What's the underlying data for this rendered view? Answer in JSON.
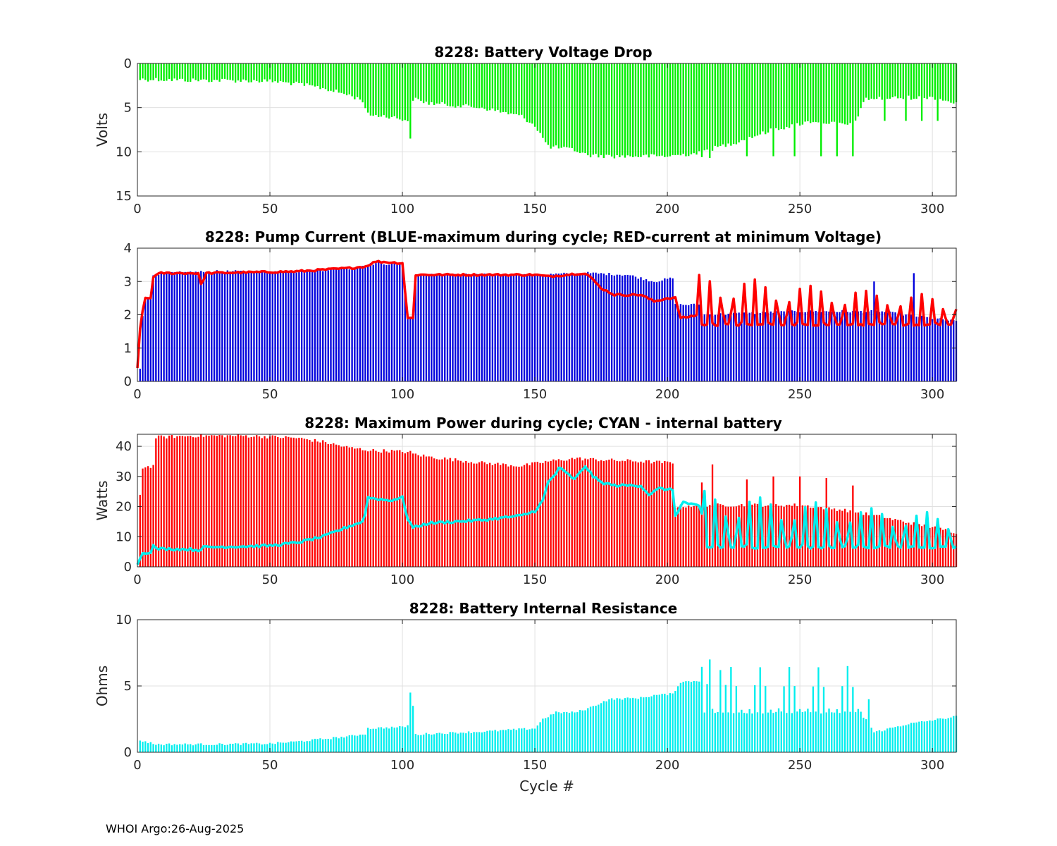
{
  "footer": "WHOI Argo:26-Aug-2025",
  "colors": {
    "voltage": "#00ee00",
    "pump_max": "#0000dd",
    "pump_min": "#ff0000",
    "power": "#ff0000",
    "internal": "#00eeee",
    "resistance": "#00eeee"
  },
  "chart_data": [
    {
      "id": "voltage",
      "type": "bar",
      "title": "8228: Battery Voltage Drop",
      "xlabel": "",
      "ylabel": "Volts",
      "xlim": [
        0,
        309
      ],
      "ylim": [
        0,
        15
      ],
      "y_reversed": true,
      "xticks": [
        0,
        50,
        100,
        150,
        200,
        250,
        300
      ],
      "yticks": [
        0,
        5,
        10,
        15
      ],
      "grid": true,
      "series": [
        {
          "name": "voltage drop",
          "style": "bar",
          "x_start": 1,
          "keypoints": [
            [
              1,
              1.8
            ],
            [
              5,
              1.8
            ],
            [
              20,
              1.9
            ],
            [
              30,
              1.9
            ],
            [
              50,
              2.0
            ],
            [
              60,
              2.3
            ],
            [
              70,
              2.8
            ],
            [
              80,
              3.6
            ],
            [
              85,
              4.2
            ],
            [
              87,
              5.8
            ],
            [
              95,
              6.0
            ],
            [
              103,
              6.5
            ],
            [
              104,
              4.0
            ],
            [
              110,
              4.5
            ],
            [
              130,
              5.0
            ],
            [
              145,
              6.0
            ],
            [
              150,
              7.0
            ],
            [
              155,
              9.4
            ],
            [
              165,
              9.8
            ],
            [
              170,
              10.4
            ],
            [
              180,
              10.5
            ],
            [
              200,
              10.5
            ],
            [
              210,
              10.2
            ],
            [
              225,
              9.0
            ],
            [
              240,
              7.5
            ],
            [
              255,
              6.5
            ],
            [
              270,
              7.0
            ],
            [
              275,
              4.0
            ],
            [
              300,
              3.8
            ],
            [
              309,
              4.5
            ]
          ],
          "spikes": [
            {
              "x": 103,
              "value": 8.5
            },
            {
              "x": 213,
              "value": 10.6
            },
            {
              "x": 216,
              "value": 10.7
            },
            {
              "x": 230,
              "value": 10.5
            },
            {
              "x": 240,
              "value": 10.5
            },
            {
              "x": 248,
              "value": 10.5
            },
            {
              "x": 258,
              "value": 10.5
            },
            {
              "x": 264,
              "value": 10.5
            },
            {
              "x": 270,
              "value": 10.5
            },
            {
              "x": 282,
              "value": 6.5
            },
            {
              "x": 290,
              "value": 6.5
            },
            {
              "x": 296,
              "value": 6.5
            },
            {
              "x": 302,
              "value": 6.5
            }
          ],
          "noise": 0.25
        }
      ]
    },
    {
      "id": "pump",
      "type": "bar",
      "title": "8228: Pump Current (BLUE-maximum during cycle; RED-current at minimum Voltage)",
      "xlabel": "",
      "ylabel": "",
      "xlim": [
        0,
        309
      ],
      "ylim": [
        0,
        4
      ],
      "y_reversed": false,
      "xticks": [
        0,
        50,
        100,
        150,
        200,
        250,
        300
      ],
      "yticks": [
        0,
        1,
        2,
        3,
        4
      ],
      "grid": true,
      "series": [
        {
          "name": "BLUE-maximum during cycle",
          "style": "bar",
          "x_start": 1,
          "keypoints": [
            [
              1,
              0.4
            ],
            [
              2,
              2.0
            ],
            [
              3,
              2.5
            ],
            [
              5,
              2.5
            ],
            [
              6,
              3.2
            ],
            [
              10,
              3.25
            ],
            [
              30,
              3.3
            ],
            [
              60,
              3.3
            ],
            [
              80,
              3.4
            ],
            [
              90,
              3.55
            ],
            [
              100,
              3.5
            ],
            [
              102,
              1.9
            ],
            [
              104,
              1.9
            ],
            [
              105,
              3.2
            ],
            [
              150,
              3.2
            ],
            [
              170,
              3.25
            ],
            [
              185,
              3.2
            ],
            [
              195,
              3.0
            ],
            [
              202,
              3.1
            ],
            [
              203,
              2.3
            ],
            [
              212,
              2.3
            ],
            [
              213,
              2.0
            ],
            [
              250,
              2.1
            ],
            [
              280,
              2.1
            ],
            [
              309,
              1.8
            ]
          ],
          "spikes": [
            {
              "x": 278,
              "value": 3.0
            },
            {
              "x": 293,
              "value": 3.25
            }
          ],
          "noise": 0.04
        },
        {
          "name": "RED-current at minimum Voltage",
          "style": "line",
          "x_start": 0,
          "keypoints": [
            [
              0,
              0.4
            ],
            [
              1,
              1.6
            ],
            [
              2,
              2.1
            ],
            [
              3,
              2.5
            ],
            [
              5,
              2.5
            ],
            [
              6,
              3.15
            ],
            [
              9,
              3.25
            ],
            [
              23,
              3.25
            ],
            [
              24,
              2.9
            ],
            [
              26,
              3.25
            ],
            [
              60,
              3.3
            ],
            [
              80,
              3.4
            ],
            [
              86,
              3.45
            ],
            [
              90,
              3.6
            ],
            [
              100,
              3.55
            ],
            [
              102,
              1.9
            ],
            [
              104,
              1.9
            ],
            [
              105,
              3.2
            ],
            [
              150,
              3.2
            ],
            [
              155,
              3.15
            ],
            [
              168,
              3.25
            ],
            [
              170,
              3.2
            ],
            [
              175,
              2.8
            ],
            [
              180,
              2.6
            ],
            [
              190,
              2.6
            ],
            [
              195,
              2.4
            ],
            [
              200,
              2.5
            ],
            [
              203,
              2.5
            ],
            [
              205,
              1.9
            ],
            [
              212,
              2.0
            ],
            [
              309,
              1.7
            ]
          ],
          "oscillation": {
            "start": 212,
            "end": 309,
            "period": 4.2,
            "amp_start": 0.75,
            "amp_end": 0.45,
            "peak_top_start": 3.2,
            "peak_top_end": 2.5,
            "trough": 1.7
          },
          "noise": 0.03
        }
      ]
    },
    {
      "id": "power",
      "type": "bar",
      "title": "8228: Maximum Power during cycle; CYAN - internal battery",
      "xlabel": "",
      "ylabel": "Watts",
      "xlim": [
        0,
        309
      ],
      "ylim": [
        0,
        44
      ],
      "y_reversed": false,
      "xticks": [
        0,
        50,
        100,
        150,
        200,
        250,
        300
      ],
      "yticks": [
        0,
        10,
        20,
        30,
        40
      ],
      "grid": true,
      "series": [
        {
          "name": "Maximum Power",
          "style": "bar",
          "x_start": 1,
          "keypoints": [
            [
              1,
              24
            ],
            [
              2,
              33
            ],
            [
              6,
              33.5
            ],
            [
              7,
              43
            ],
            [
              20,
              43.5
            ],
            [
              40,
              43.5
            ],
            [
              50,
              43.2
            ],
            [
              60,
              42.8
            ],
            [
              70,
              41.5
            ],
            [
              80,
              39.5
            ],
            [
              90,
              38.5
            ],
            [
              95,
              38.5
            ],
            [
              103,
              38
            ],
            [
              104,
              37.5
            ],
            [
              110,
              36.5
            ],
            [
              130,
              34.5
            ],
            [
              145,
              33.5
            ],
            [
              155,
              35
            ],
            [
              165,
              36
            ],
            [
              175,
              35.5
            ],
            [
              190,
              35
            ],
            [
              202,
              34.5
            ],
            [
              203,
              20
            ],
            [
              212,
              20.5
            ],
            [
              250,
              20.5
            ],
            [
              270,
              18.5
            ],
            [
              278,
              17
            ],
            [
              309,
              11.5
            ]
          ],
          "spikes": [
            {
              "x": 213,
              "value": 28
            },
            {
              "x": 217,
              "value": 34
            },
            {
              "x": 230,
              "value": 29
            },
            {
              "x": 240,
              "value": 30
            },
            {
              "x": 250,
              "value": 30
            },
            {
              "x": 260,
              "value": 29.5
            },
            {
              "x": 270,
              "value": 27
            }
          ],
          "noise": 0.6
        },
        {
          "name": "CYAN - internal battery",
          "style": "line",
          "x_start": 0,
          "keypoints": [
            [
              0,
              0.5
            ],
            [
              1,
              3
            ],
            [
              2,
              4.5
            ],
            [
              5,
              5
            ],
            [
              6,
              7
            ],
            [
              7,
              6
            ],
            [
              20,
              5.8
            ],
            [
              23,
              5.5
            ],
            [
              25,
              6.5
            ],
            [
              50,
              7
            ],
            [
              60,
              8
            ],
            [
              70,
              10
            ],
            [
              80,
              13.5
            ],
            [
              85,
              15
            ],
            [
              86,
              18
            ],
            [
              87,
              23
            ],
            [
              95,
              22
            ],
            [
              100,
              23
            ],
            [
              102,
              16
            ],
            [
              104,
              13
            ],
            [
              110,
              14.5
            ],
            [
              130,
              15.5
            ],
            [
              145,
              17
            ],
            [
              150,
              18.5
            ],
            [
              153,
              22
            ],
            [
              155,
              28
            ],
            [
              158,
              31
            ],
            [
              159,
              33
            ],
            [
              165,
              29
            ],
            [
              169,
              33.5
            ],
            [
              172,
              30
            ],
            [
              175,
              28
            ],
            [
              180,
              27
            ],
            [
              190,
              27
            ],
            [
              193,
              24
            ],
            [
              197,
              26
            ],
            [
              202,
              25.5
            ],
            [
              203,
              17
            ],
            [
              206,
              21.5
            ],
            [
              212,
              20
            ],
            [
              214,
              15
            ],
            [
              218,
              23
            ],
            [
              270,
              20
            ],
            [
              275,
              18
            ],
            [
              309,
              8
            ]
          ],
          "oscillation": {
            "start": 214,
            "end": 309,
            "period": 4.2,
            "amp_start": 4.5,
            "amp_end": 6.5,
            "peak_top_start": 25,
            "peak_top_end": 17,
            "trough": 6.5
          },
          "noise": 0.4
        }
      ]
    },
    {
      "id": "resistance",
      "type": "bar",
      "title": "8228: Battery Internal Resistance",
      "xlabel": "Cycle #",
      "ylabel": "Ohms",
      "xlim": [
        0,
        309
      ],
      "ylim": [
        0,
        10
      ],
      "y_reversed": false,
      "xticks": [
        0,
        50,
        100,
        150,
        200,
        250,
        300
      ],
      "yticks": [
        0,
        5,
        10
      ],
      "grid": true,
      "series": [
        {
          "name": "internal resistance",
          "style": "bar",
          "x_start": 1,
          "keypoints": [
            [
              1,
              0.9
            ],
            [
              5,
              0.7
            ],
            [
              7,
              0.6
            ],
            [
              30,
              0.6
            ],
            [
              50,
              0.65
            ],
            [
              60,
              0.8
            ],
            [
              70,
              1.0
            ],
            [
              80,
              1.2
            ],
            [
              86,
              1.4
            ],
            [
              87,
              1.8
            ],
            [
              100,
              1.9
            ],
            [
              102,
              2.0
            ],
            [
              103,
              1.3
            ],
            [
              110,
              1.4
            ],
            [
              130,
              1.55
            ],
            [
              150,
              1.8
            ],
            [
              153,
              2.5
            ],
            [
              158,
              3.0
            ],
            [
              165,
              3.0
            ],
            [
              170,
              3.3
            ],
            [
              178,
              4.0
            ],
            [
              190,
              4.1
            ],
            [
              195,
              4.3
            ],
            [
              202,
              4.4
            ],
            [
              205,
              5.3
            ],
            [
              212,
              5.4
            ],
            [
              213,
              3.0
            ],
            [
              270,
              3.2
            ],
            [
              275,
              2.5
            ],
            [
              278,
              1.5
            ],
            [
              290,
              2.1
            ],
            [
              309,
              2.7
            ]
          ],
          "oscillation": {
            "start": 213,
            "end": 273,
            "period": 2.2,
            "amp_start": 1.5,
            "amp_end": 1.5,
            "peak_top_start": 6.5,
            "peak_top_end": 6.3,
            "trough": 3.0,
            "kind": "bars"
          },
          "spikes": [
            {
              "x": 103,
              "value": 4.5
            },
            {
              "x": 104,
              "value": 3.5
            },
            {
              "x": 216,
              "value": 7.0
            },
            {
              "x": 220,
              "value": 6.2
            },
            {
              "x": 268,
              "value": 6.5
            },
            {
              "x": 276,
              "value": 4.0
            }
          ],
          "noise": 0.08
        }
      ]
    }
  ]
}
